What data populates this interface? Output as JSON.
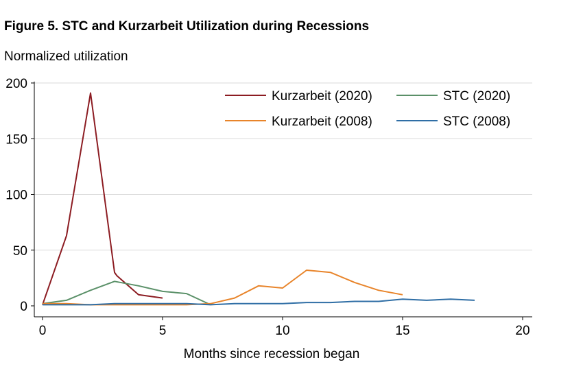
{
  "chart_data": {
    "type": "line",
    "title": "Figure 5. STC and Kurzarbeit Utilization during Recessions",
    "ylabel": "Normalized utilization",
    "xlabel": "Months since recession began",
    "xlim": [
      0,
      20
    ],
    "ylim": [
      0,
      200
    ],
    "xticks": [
      0,
      5,
      10,
      15,
      20
    ],
    "yticks": [
      0,
      50,
      100,
      150,
      200
    ],
    "grid": "horizontal",
    "legend_position": "top-right",
    "series": [
      {
        "name": "Kurzarbeit (2020)",
        "color": "#8c1c22",
        "x": [
          0,
          1,
          2,
          3,
          3.1,
          4,
          5
        ],
        "y": [
          1,
          63,
          191,
          30,
          27,
          10,
          7
        ]
      },
      {
        "name": "STC (2020)",
        "color": "#5a9068",
        "x": [
          0,
          1,
          2,
          3,
          4,
          5,
          6,
          7
        ],
        "y": [
          2,
          5,
          14,
          22,
          18,
          13,
          11,
          1
        ]
      },
      {
        "name": "Kurzarbeit (2008)",
        "color": "#e8842a",
        "x": [
          0,
          1,
          2,
          3,
          4,
          5,
          6,
          7,
          8,
          9,
          10,
          11,
          12,
          13,
          14,
          15
        ],
        "y": [
          2,
          2,
          1,
          1,
          1,
          1,
          1,
          2,
          7,
          18,
          16,
          32,
          30,
          21,
          14,
          10
        ]
      },
      {
        "name": "STC (2008)",
        "color": "#2f6ea5",
        "x": [
          0,
          1,
          2,
          3,
          4,
          5,
          6,
          7,
          8,
          9,
          10,
          11,
          12,
          13,
          14,
          15,
          16,
          17,
          18
        ],
        "y": [
          1,
          1,
          1,
          2,
          2,
          2,
          2,
          1,
          2,
          2,
          2,
          3,
          3,
          4,
          4,
          6,
          5,
          6,
          5
        ]
      }
    ]
  }
}
